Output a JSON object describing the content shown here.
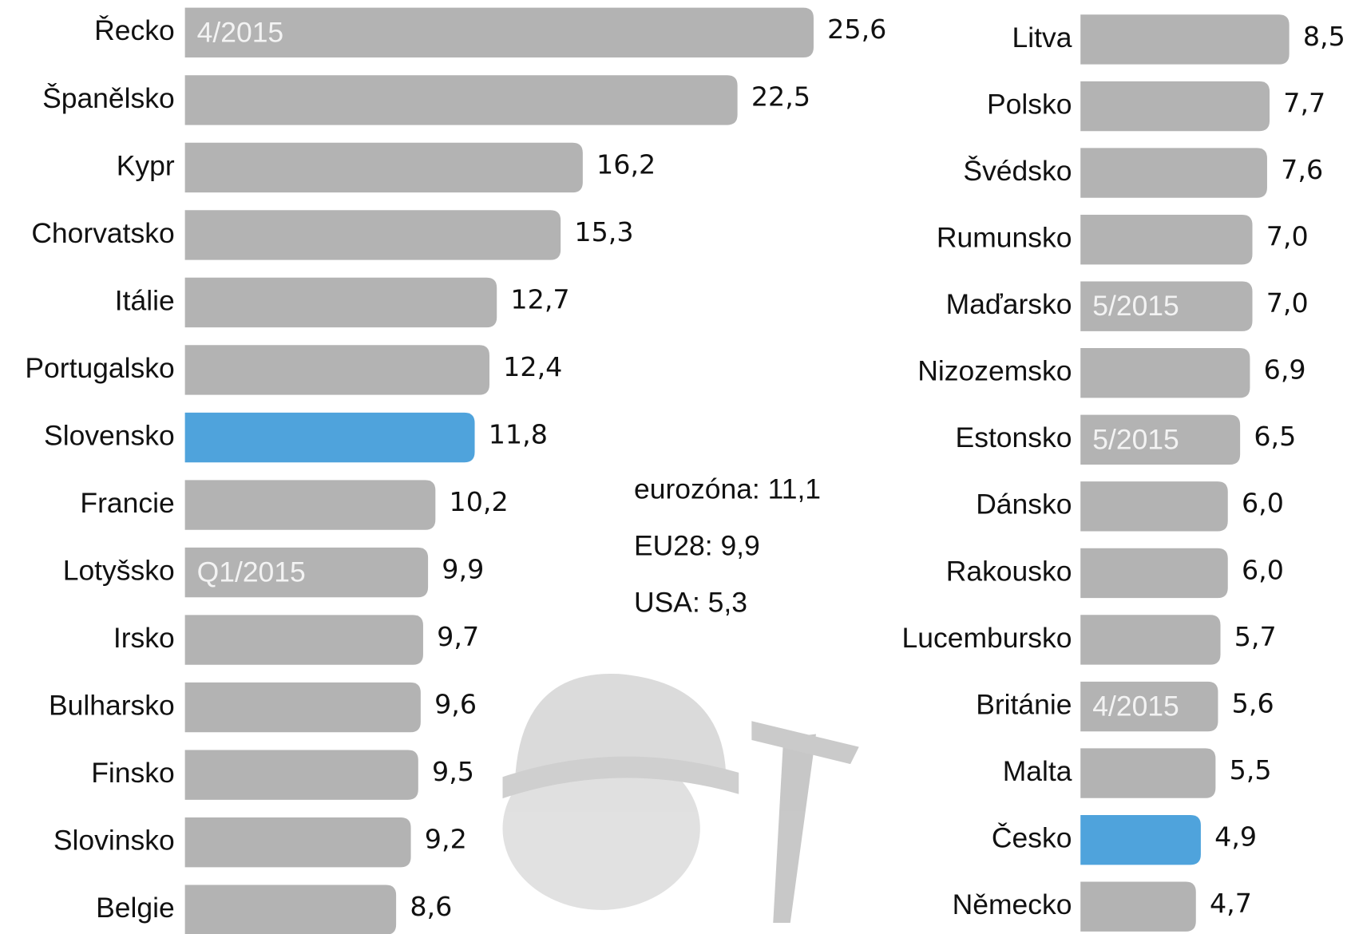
{
  "chart_data": [
    {
      "type": "bar",
      "orientation": "horizontal",
      "categories": [
        "Řecko",
        "Španělsko",
        "Kypr",
        "Chorvatsko",
        "Itálie",
        "Portugalsko",
        "Slovensko",
        "Francie",
        "Lotyšsko",
        "Irsko",
        "Bulharsko",
        "Finsko",
        "Slovinsko",
        "Belgie"
      ],
      "values": [
        25.6,
        22.5,
        16.2,
        15.3,
        12.7,
        12.4,
        11.8,
        10.2,
        9.9,
        9.7,
        9.6,
        9.5,
        9.2,
        8.6
      ],
      "value_labels": [
        "25,6",
        "22,5",
        "16,2",
        "15,3",
        "12,7",
        "12,4",
        "11,8",
        "10,2",
        "9,9",
        "9,7",
        "9,6",
        "9,5",
        "9,2",
        "8,6"
      ],
      "notes": [
        "4/2015",
        null,
        null,
        null,
        null,
        null,
        null,
        null,
        "Q1/2015",
        null,
        null,
        null,
        null,
        null
      ],
      "colors": [
        "#b3b3b3",
        "#b3b3b3",
        "#b3b3b3",
        "#b3b3b3",
        "#b3b3b3",
        "#b3b3b3",
        "#4fa3dc",
        "#b3b3b3",
        "#b3b3b3",
        "#b3b3b3",
        "#b3b3b3",
        "#b3b3b3",
        "#b3b3b3",
        "#b3b3b3"
      ],
      "xlim": [
        0,
        26
      ],
      "annotations": [
        "eurozóna: 11,1",
        "EU28: 9,9",
        "USA: 5,3"
      ]
    },
    {
      "type": "bar",
      "orientation": "horizontal",
      "categories": [
        "Litva",
        "Polsko",
        "Švédsko",
        "Rumunsko",
        "Maďarsko",
        "Nizozemsko",
        "Estonsko",
        "Dánsko",
        "Rakousko",
        "Lucembursko",
        "Británie",
        "Malta",
        "Česko",
        "Německo"
      ],
      "values": [
        8.5,
        7.7,
        7.6,
        7.0,
        7.0,
        6.9,
        6.5,
        6.0,
        6.0,
        5.7,
        5.6,
        5.5,
        4.9,
        4.7
      ],
      "value_labels": [
        "8,5",
        "7,7",
        "7,6",
        "7,0",
        "7,0",
        "6,9",
        "6,5",
        "6,0",
        "6,0",
        "5,7",
        "5,6",
        "5,5",
        "4,9",
        "4,7"
      ],
      "notes": [
        null,
        null,
        null,
        null,
        "5/2015",
        null,
        "5/2015",
        null,
        null,
        null,
        "4/2015",
        null,
        null,
        null
      ],
      "colors": [
        "#b3b3b3",
        "#b3b3b3",
        "#b3b3b3",
        "#b3b3b3",
        "#b3b3b3",
        "#b3b3b3",
        "#b3b3b3",
        "#b3b3b3",
        "#b3b3b3",
        "#b3b3b3",
        "#b3b3b3",
        "#b3b3b3",
        "#4fa3dc",
        "#b3b3b3"
      ],
      "xlim": [
        0,
        9
      ]
    }
  ]
}
